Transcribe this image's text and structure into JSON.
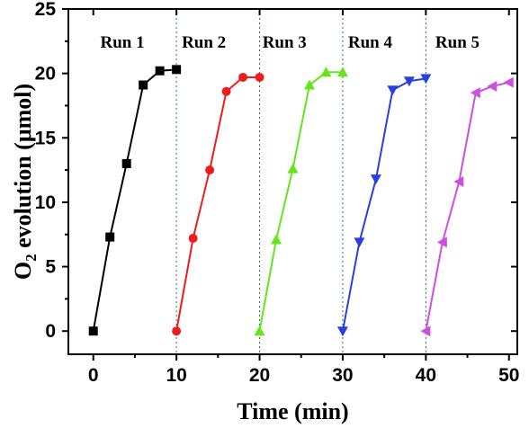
{
  "chart_data": {
    "type": "line",
    "xlabel": "Time (min)",
    "ylabel_main": "O",
    "ylabel_sub": "2",
    "ylabel_rest": " evolution (μmol)",
    "xlim": [
      -3,
      51
    ],
    "ylim": [
      -1.8,
      25
    ],
    "xticks": [
      0,
      10,
      20,
      30,
      40,
      50
    ],
    "yticks": [
      0,
      5,
      10,
      15,
      20,
      25
    ],
    "dividers": [
      10,
      20,
      30,
      40
    ],
    "series": [
      {
        "name": "Run 1",
        "color": "#000000",
        "marker": "square",
        "x": [
          0,
          2,
          4,
          6,
          8,
          10
        ],
        "y": [
          0,
          7.3,
          13.0,
          19.1,
          20.2,
          20.3
        ]
      },
      {
        "name": "Run 2",
        "color": "#ee1c1c",
        "marker": "circle",
        "x": [
          10,
          12,
          14,
          16,
          18,
          20
        ],
        "y": [
          0,
          7.2,
          12.5,
          18.6,
          19.7,
          19.7
        ]
      },
      {
        "name": "Run 3",
        "color": "#66e61a",
        "marker": "triangle-up",
        "x": [
          20,
          22,
          24,
          26,
          28,
          30
        ],
        "y": [
          0,
          7.1,
          12.6,
          19.1,
          20.1,
          20.1
        ]
      },
      {
        "name": "Run 4",
        "color": "#2a3fe0",
        "marker": "triangle-down",
        "x": [
          30,
          32,
          34,
          36,
          38,
          40
        ],
        "y": [
          0,
          6.9,
          11.8,
          18.7,
          19.4,
          19.6
        ]
      },
      {
        "name": "Run 5",
        "color": "#cc4fe0",
        "marker": "triangle-left",
        "x": [
          40,
          42,
          44,
          46,
          48,
          50
        ],
        "y": [
          0,
          6.9,
          11.6,
          18.5,
          19.0,
          19.3
        ]
      }
    ],
    "run_labels": [
      {
        "text": "Run 1",
        "x": 3.5
      },
      {
        "text": "Run 2",
        "x": 13.3
      },
      {
        "text": "Run 3",
        "x": 23.0
      },
      {
        "text": "Run 4",
        "x": 33.3
      },
      {
        "text": "Run 5",
        "x": 43.8
      }
    ],
    "run_label_y": 22.5
  }
}
